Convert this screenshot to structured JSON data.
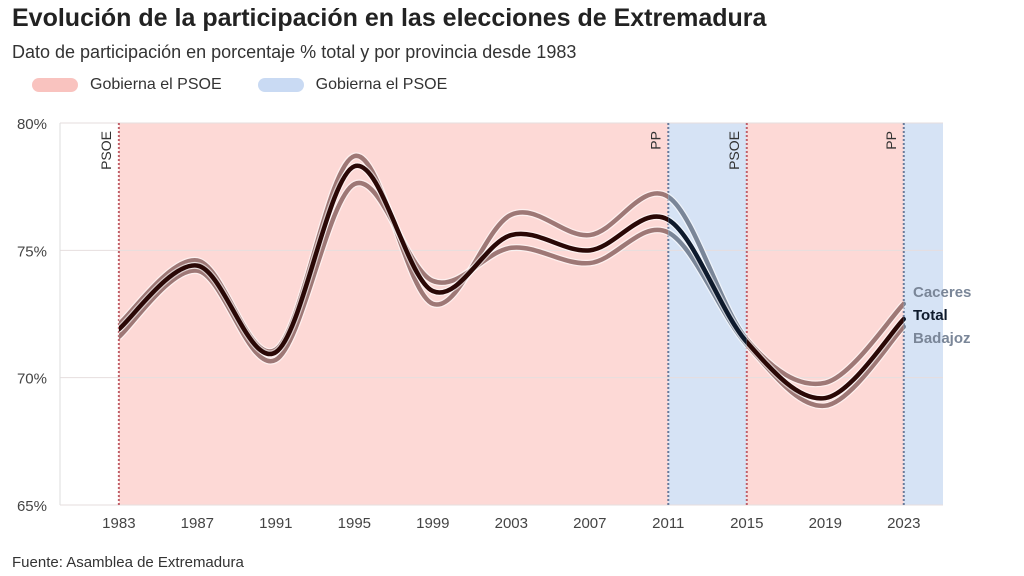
{
  "title": "Evolución de la participación en las elecciones de Extremadura",
  "subtitle": "Dato de participación en porcentaje % total y por provincia desde 1983",
  "legend": [
    {
      "label": "Gobierna el PSOE",
      "color": "#f9c3bf"
    },
    {
      "label": "Gobierna el PSOE",
      "color": "#c9daf3"
    }
  ],
  "source": "Fuente: Asamblea de Extremadura",
  "colors": {
    "psoe_band": "#fdd9d6",
    "pp_band": "#d6e3f5",
    "psoe_line": "#c0606a",
    "pp_line": "#6a7a9a",
    "province_psoe": "#9e7876",
    "province_pp": "#7a8698",
    "total_psoe": "#2a0806",
    "total_pp": "#0e1a2c"
  },
  "chart_data": {
    "type": "line",
    "x": [
      1983,
      1987,
      1991,
      1995,
      1999,
      2003,
      2007,
      2011,
      2015,
      2019,
      2023
    ],
    "xlim": [
      1980,
      2025
    ],
    "ylim": [
      65,
      80
    ],
    "yticks": [
      65,
      70,
      75,
      80
    ],
    "ytick_labels": [
      "65%",
      "70%",
      "75%",
      "80%"
    ],
    "xtick_labels": [
      "1983",
      "1987",
      "1991",
      "1995",
      "1999",
      "2003",
      "2007",
      "2011",
      "2015",
      "2019",
      "2023"
    ],
    "grid": true,
    "series": [
      {
        "name": "Caceres",
        "values": [
          72.1,
          74.6,
          71.1,
          78.7,
          72.9,
          76.4,
          75.6,
          77.1,
          71.5,
          69.8,
          72.9
        ]
      },
      {
        "name": "Total",
        "values": [
          71.9,
          74.4,
          71.0,
          78.3,
          73.4,
          75.6,
          75.0,
          76.2,
          71.4,
          69.2,
          72.3
        ]
      },
      {
        "name": "Badajoz",
        "values": [
          71.6,
          74.2,
          70.7,
          77.6,
          73.8,
          75.1,
          74.5,
          75.7,
          71.3,
          68.9,
          72.0
        ]
      }
    ],
    "governments": [
      {
        "start": 1983,
        "end": 2011,
        "party": "PSOE",
        "label": "PSOE"
      },
      {
        "start": 2011,
        "end": 2015,
        "party": "PP",
        "label": "PP"
      },
      {
        "start": 2015,
        "end": 2023,
        "party": "PSOE",
        "label": "PSOE"
      },
      {
        "start": 2023,
        "end": 2025,
        "party": "PP",
        "label": "PP"
      }
    ]
  }
}
